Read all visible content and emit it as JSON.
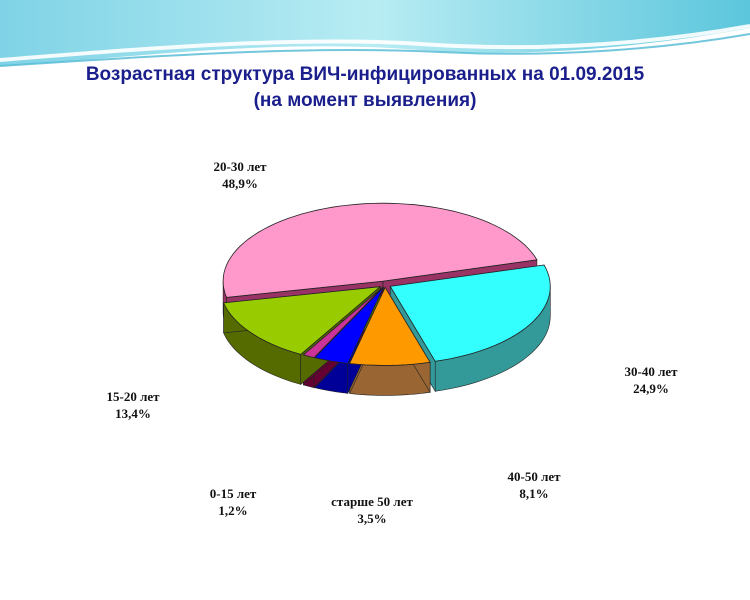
{
  "title_line1": "Возрастная структура ВИЧ-инфицированных на 01.09.2015",
  "title_line2": "(на момент выявления)",
  "chart_data": {
    "type": "pie",
    "style": "3d-exploded",
    "slices": [
      {
        "label": "20-30 лет",
        "value": "48,9%",
        "percent": 48.9,
        "color": "#ff99cc",
        "side": "#993366"
      },
      {
        "label": "30-40 лет",
        "value": "24,9%",
        "percent": 24.9,
        "color": "#33ffff",
        "side": "#339999"
      },
      {
        "label": "40-50 лет",
        "value": "8,1%",
        "percent": 8.1,
        "color": "#ff9900",
        "side": "#996633"
      },
      {
        "label": "старше 50 лет",
        "value": "3,5%",
        "percent": 3.5,
        "color": "#0000ff",
        "side": "#000099"
      },
      {
        "label": "0-15 лет",
        "value": "1,2%",
        "percent": 1.2,
        "color": "#cc3399",
        "side": "#660033"
      },
      {
        "label": "15-20 лет",
        "value": "13,4%",
        "percent": 13.4,
        "color": "#99cc00",
        "side": "#556b00"
      }
    ]
  }
}
